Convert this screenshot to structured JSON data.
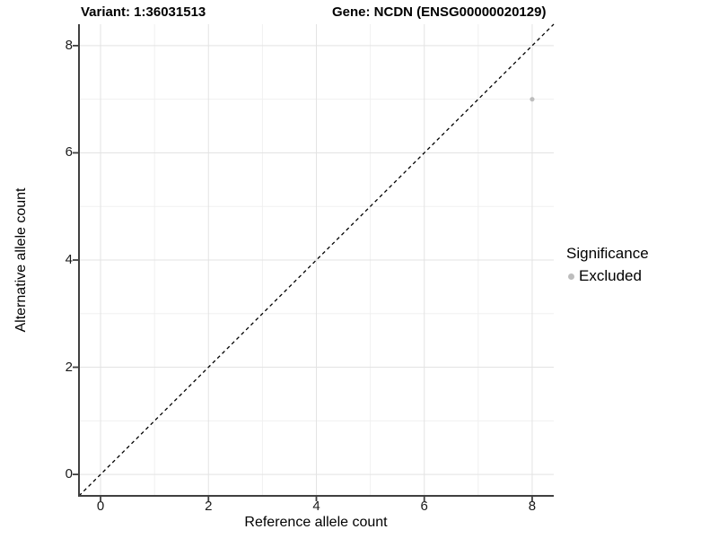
{
  "titles": {
    "variant": "Variant: 1:36031513",
    "gene": "Gene: NCDN (ENSG00000020129)"
  },
  "chart_data": {
    "type": "scatter",
    "title_left": "Variant: 1:36031513",
    "title_right": "Gene: NCDN (ENSG00000020129)",
    "xlabel": "Reference allele count",
    "ylabel": "Alternative allele count",
    "xlim": [
      -0.4,
      8.4
    ],
    "ylim": [
      -0.4,
      8.4
    ],
    "x_major_ticks": [
      0,
      2,
      4,
      6,
      8
    ],
    "y_major_ticks": [
      0,
      2,
      4,
      6,
      8
    ],
    "x_minor_gridlines": [
      1,
      3,
      5,
      7
    ],
    "y_minor_gridlines": [
      1,
      3,
      5,
      7
    ],
    "grid": true,
    "identity_line": {
      "slope": 1,
      "intercept": 0,
      "style": "dashed",
      "color": "#000000"
    },
    "series": [
      {
        "name": "Excluded",
        "points": [
          {
            "x": 8,
            "y": 7
          }
        ],
        "color": "#BDBDBD"
      }
    ],
    "legend": {
      "title": "Significance",
      "position": "right",
      "entries": [
        {
          "label": "Excluded",
          "color": "#BDBDBD",
          "marker": "circle"
        }
      ]
    },
    "colors": {
      "background": "#FFFFFF",
      "grid_major": "#E3E3E3",
      "grid_minor": "#F0F0F0",
      "axis_line": "#404040",
      "tick_text": "#1a1a1a",
      "point": "#BDBDBD",
      "identity_line": "#000000"
    }
  }
}
